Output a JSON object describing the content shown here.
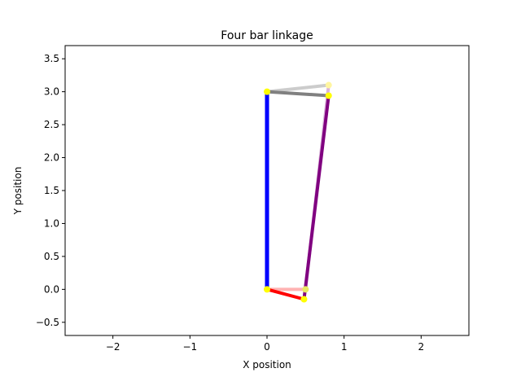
{
  "chart_data": {
    "type": "line",
    "title": "Four bar linkage",
    "xlabel": "X position",
    "ylabel": "Y position",
    "xlim": [
      -2.62,
      2.62
    ],
    "ylim": [
      -0.7,
      3.7
    ],
    "xticks": [
      -2,
      -1,
      0,
      1,
      2
    ],
    "xtick_labels": [
      "−2",
      "−1",
      "0",
      "1",
      "2"
    ],
    "yticks": [
      -0.5,
      0.0,
      0.5,
      1.0,
      1.5,
      2.0,
      2.5,
      3.0,
      3.5
    ],
    "ytick_labels": [
      "−0.5",
      "0.0",
      "0.5",
      "1.0",
      "1.5",
      "2.0",
      "2.5",
      "3.0",
      "3.5"
    ],
    "grid": false,
    "legend": "none",
    "series": [
      {
        "color": "#ffb3b3",
        "opacity": 1.0,
        "width": 4,
        "x": [
          0.0,
          0.5
        ],
        "y": [
          0.0,
          0.0
        ]
      },
      {
        "color": "#d9b3d9",
        "opacity": 1.0,
        "width": 4,
        "x": [
          0.5,
          0.8
        ],
        "y": [
          0.0,
          3.1
        ]
      },
      {
        "color": "#cccccc",
        "opacity": 1.0,
        "width": 4,
        "x": [
          0.0,
          0.8
        ],
        "y": [
          3.0,
          3.1
        ]
      },
      {
        "color": "#0000ff",
        "opacity": 1.0,
        "width": 5,
        "x": [
          0.0,
          0.0
        ],
        "y": [
          0.0,
          3.0
        ]
      },
      {
        "color": "#ff0000",
        "opacity": 1.0,
        "width": 4,
        "x": [
          0.0,
          0.48
        ],
        "y": [
          0.0,
          -0.15
        ]
      },
      {
        "color": "#800080",
        "opacity": 1.0,
        "width": 4,
        "x": [
          0.48,
          0.8
        ],
        "y": [
          -0.15,
          2.94
        ]
      },
      {
        "color": "#808080",
        "opacity": 1.0,
        "width": 4,
        "x": [
          0.0,
          0.8
        ],
        "y": [
          3.0,
          2.94
        ]
      }
    ],
    "joints": [
      {
        "color": "#fff5a0",
        "x": 0.8,
        "y": 3.1
      },
      {
        "color": "#e8e860",
        "x": 0.5,
        "y": 0.0
      },
      {
        "color": "#ffff00",
        "x": 0.0,
        "y": 0.0
      },
      {
        "color": "#ffff00",
        "x": 0.0,
        "y": 3.0
      },
      {
        "color": "#ffff00",
        "x": 0.48,
        "y": -0.15
      },
      {
        "color": "#ffff00",
        "x": 0.8,
        "y": 2.94
      }
    ]
  }
}
